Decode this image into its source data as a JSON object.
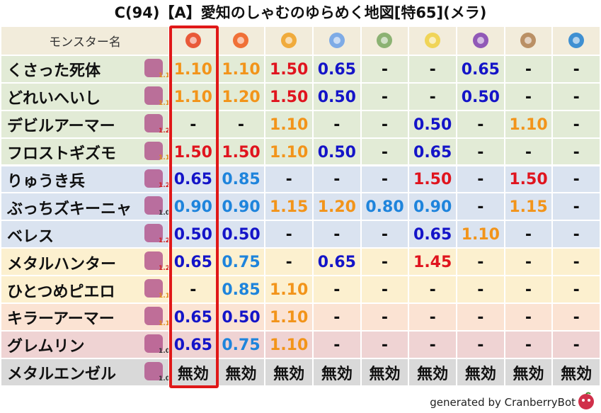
{
  "title": "C(94)【A】愛知のしゃむのゆらめく地図[特65](メラ)",
  "header": {
    "name": "モンスター名"
  },
  "rows": [
    {
      "name": "くさった死体",
      "mult": "1.1",
      "color": "#e2ebd6",
      "values": [
        "1.10",
        "1.10",
        "1.50",
        "0.65",
        "-",
        "-",
        "0.65",
        "-",
        "-"
      ]
    },
    {
      "name": "どれいへいし",
      "mult": "1.1",
      "color": "#e2ebd6",
      "values": [
        "1.10",
        "1.20",
        "1.50",
        "0.50",
        "-",
        "-",
        "0.50",
        "-",
        "-"
      ]
    },
    {
      "name": "デビルアーマー",
      "mult": "1.2",
      "color": "#e2ebd6",
      "values": [
        "-",
        "-",
        "1.10",
        "-",
        "-",
        "0.50",
        "-",
        "1.10",
        "-"
      ]
    },
    {
      "name": "フロストギズモ",
      "mult": "1.1",
      "color": "#e2ebd6",
      "values": [
        "1.50",
        "1.50",
        "1.10",
        "0.50",
        "-",
        "0.65",
        "-",
        "-",
        "-"
      ]
    },
    {
      "name": "りゅうき兵",
      "mult": "1.2",
      "color": "#dae3f0",
      "values": [
        "0.65",
        "0.85",
        "-",
        "-",
        "-",
        "1.50",
        "-",
        "1.50",
        "-"
      ]
    },
    {
      "name": "ぶっちズキーニャ",
      "mult": "1.0",
      "color": "#dae3f0",
      "values": [
        "0.90",
        "0.90",
        "1.15",
        "1.20",
        "0.80",
        "0.90",
        "-",
        "1.15",
        "-"
      ]
    },
    {
      "name": "ベレス",
      "mult": "1.2",
      "color": "#dae3f0",
      "values": [
        "0.50",
        "0.50",
        "-",
        "-",
        "-",
        "0.65",
        "1.10",
        "-",
        "-"
      ]
    },
    {
      "name": "メタルハンター",
      "mult": "1.2",
      "color": "#fcf0cf",
      "values": [
        "0.65",
        "0.75",
        "-",
        "0.65",
        "-",
        "1.45",
        "-",
        "-",
        "-"
      ]
    },
    {
      "name": "ひとつめピエロ",
      "mult": "1.1",
      "color": "#fcf0cf",
      "values": [
        "-",
        "0.85",
        "1.10",
        "-",
        "-",
        "-",
        "-",
        "-",
        "-"
      ]
    },
    {
      "name": "キラーアーマー",
      "mult": "1.1",
      "color": "#fbe3d3",
      "values": [
        "0.65",
        "0.50",
        "1.10",
        "-",
        "-",
        "-",
        "-",
        "-",
        "-"
      ]
    },
    {
      "name": "グレムリン",
      "mult": "1.0",
      "color": "#efd3d3",
      "values": [
        "0.65",
        "0.75",
        "1.10",
        "-",
        "-",
        "-",
        "-",
        "-",
        "-"
      ]
    },
    {
      "name": "メタルエンゼル",
      "mult": "1.0",
      "color": "#d9d9d9",
      "values": [
        "無効",
        "無効",
        "無効",
        "無効",
        "無効",
        "無効",
        "無効",
        "無効",
        "無効"
      ]
    }
  ],
  "footer": "generated by CranberryBot"
}
